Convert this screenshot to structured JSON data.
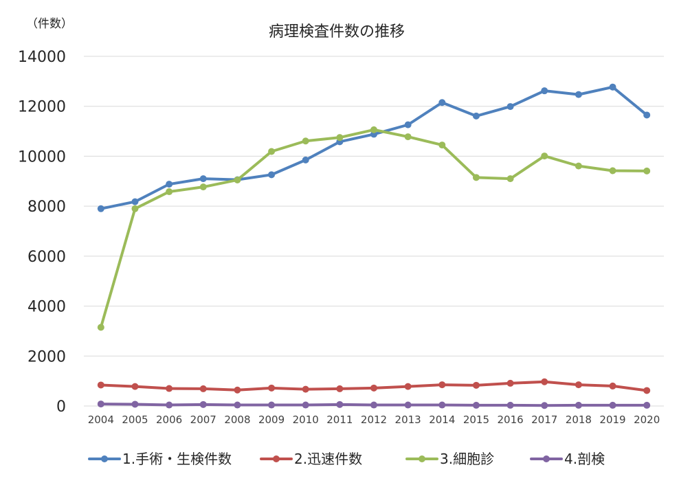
{
  "chart_data": {
    "type": "line",
    "title": "病理検査件数の推移",
    "unit_label": "（件数）",
    "xlabel": "",
    "ylabel": "",
    "ylim": [
      0,
      14000
    ],
    "yticks": [
      0,
      2000,
      4000,
      6000,
      8000,
      10000,
      12000,
      14000
    ],
    "grid": true,
    "legend_position": "bottom",
    "categories": [
      "2004",
      "2005",
      "2006",
      "2007",
      "2008",
      "2009",
      "2010",
      "2011",
      "2012",
      "2013",
      "2014",
      "2015",
      "2016",
      "2017",
      "2018",
      "2019",
      "2020"
    ],
    "series": [
      {
        "name": "1.手術・生検件数",
        "color": "#4f81bd",
        "values": [
          7900,
          8180,
          8880,
          9100,
          9060,
          9260,
          9850,
          10580,
          10880,
          11260,
          12150,
          11610,
          11990,
          12620,
          12470,
          12770,
          11650
        ]
      },
      {
        "name": "2.迅速件数",
        "color": "#c0504d",
        "values": [
          840,
          780,
          700,
          690,
          640,
          720,
          670,
          690,
          720,
          780,
          850,
          830,
          910,
          970,
          850,
          800,
          620
        ]
      },
      {
        "name": "3.細胞診",
        "color": "#9bbb59",
        "values": [
          3150,
          7900,
          8580,
          8770,
          9050,
          10190,
          10610,
          10750,
          11060,
          10780,
          10450,
          9150,
          9100,
          10010,
          9610,
          9420,
          9410
        ]
      },
      {
        "name": "4.剖検",
        "color": "#8064a2",
        "values": [
          80,
          70,
          40,
          60,
          40,
          40,
          40,
          60,
          40,
          40,
          40,
          30,
          30,
          20,
          30,
          30,
          30
        ]
      }
    ]
  }
}
